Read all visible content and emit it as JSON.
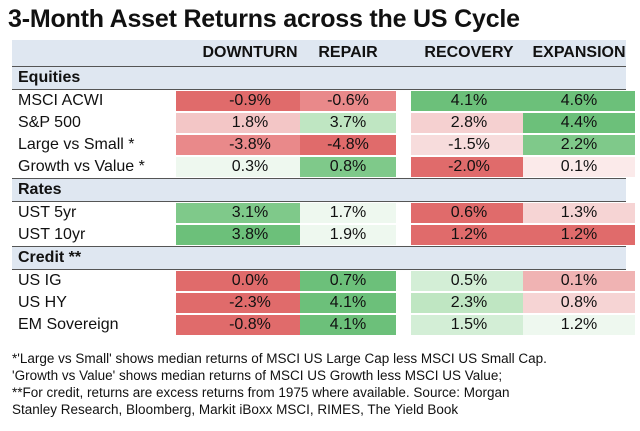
{
  "chart_data": {
    "type": "table",
    "title": "3-Month Asset Returns across the US Cycle",
    "columns": [
      "DOWNTURN",
      "REPAIR",
      "RECOVERY",
      "EXPANSION"
    ],
    "sections": [
      {
        "name": "Equities",
        "rows": [
          {
            "label": "MSCI ACWI",
            "values": [
              "-0.9%",
              "-0.6%",
              "4.1%",
              "4.6%"
            ],
            "colors": [
              "#e06b6b",
              "#e9898a",
              "#6cc07a",
              "#6cc07a"
            ]
          },
          {
            "label": "S&P 500",
            "values": [
              "1.8%",
              "3.7%",
              "2.8%",
              "4.4%"
            ],
            "colors": [
              "#f3c6c6",
              "#bfe6c2",
              "#f5d0d0",
              "#6cc07a"
            ]
          },
          {
            "label": "Large vs Small *",
            "values": [
              "-3.8%",
              "-4.8%",
              "-1.5%",
              "2.2%"
            ],
            "colors": [
              "#e9898a",
              "#e06b6b",
              "#f7dcdc",
              "#7fc98a"
            ]
          },
          {
            "label": "Growth vs Value *",
            "values": [
              "0.3%",
              "0.8%",
              "-2.0%",
              "0.1%"
            ],
            "colors": [
              "#eef8ef",
              "#7fc98a",
              "#e06b6b",
              "#fbeaea"
            ]
          }
        ]
      },
      {
        "name": "Rates",
        "rows": [
          {
            "label": "UST 5yr",
            "values": [
              "3.1%",
              "1.7%",
              "0.6%",
              "1.3%"
            ],
            "colors": [
              "#7fc98a",
              "#eef8ef",
              "#e06b6b",
              "#f6d4d4"
            ]
          },
          {
            "label": "UST 10yr",
            "values": [
              "3.8%",
              "1.9%",
              "1.2%",
              "1.2%"
            ],
            "colors": [
              "#6cc07a",
              "#eef8ef",
              "#e06b6b",
              "#e06b6b"
            ]
          }
        ]
      },
      {
        "name": "Credit **",
        "rows": [
          {
            "label": "US IG",
            "values": [
              "0.0%",
              "0.7%",
              "0.5%",
              "0.1%"
            ],
            "colors": [
              "#e06b6b",
              "#6cc07a",
              "#d3eed6",
              "#f0b3b3"
            ]
          },
          {
            "label": "US HY",
            "values": [
              "-2.3%",
              "4.1%",
              "2.3%",
              "0.8%"
            ],
            "colors": [
              "#e06b6b",
              "#6cc07a",
              "#bfe6c2",
              "#f6d4d4"
            ]
          },
          {
            "label": "EM Sovereign",
            "values": [
              "-0.8%",
              "4.1%",
              "1.5%",
              "1.2%"
            ],
            "colors": [
              "#e06b6b",
              "#6cc07a",
              "#d3eed6",
              "#eef8ef"
            ]
          }
        ]
      }
    ],
    "footnotes": [
      "*'Large vs Small' shows median returns of MSCI US Large Cap less MSCI US Small Cap.",
      "'Growth vs Value' shows median returns of MSCI US Growth less MSCI US Value;",
      "**For credit, returns are excess returns from 1975 where available.  Source: Morgan",
      "Stanley Research, Bloomberg, Markit iBoxx MSCI, RIMES, The Yield Book"
    ]
  }
}
